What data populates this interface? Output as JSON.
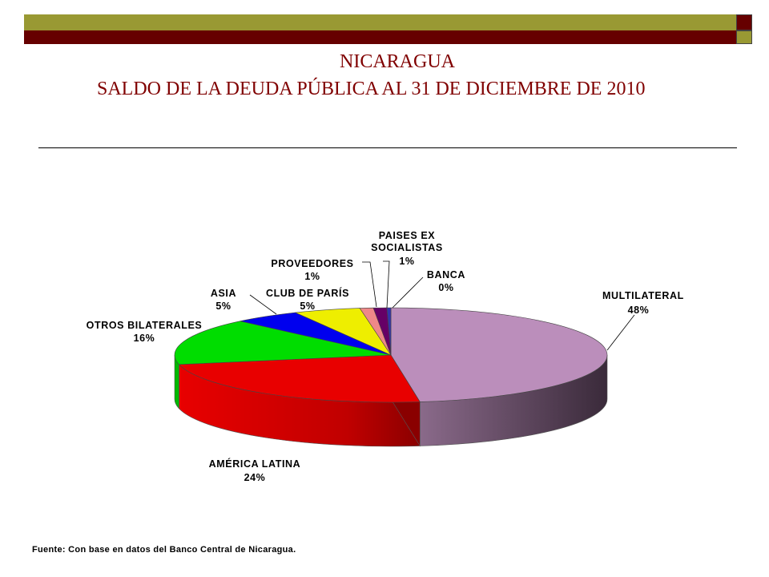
{
  "header": {
    "title_line1": "NICARAGUA",
    "title_line2": "SALDO DE LA DEUDA PÚBLICA AL 31 DE DICIEMBRE DE 2010"
  },
  "chart_data": {
    "type": "pie",
    "title": "SALDO DE LA DEUDA PÚBLICA AL 31 DE DICIEMBRE DE 2010",
    "slices": [
      {
        "label": "MULTILATERAL",
        "pct_label": "48%",
        "value": 48,
        "color": "#BB8EBB"
      },
      {
        "label": "AMÉRICA LATINA",
        "pct_label": "24%",
        "value": 24,
        "color": "#E80000"
      },
      {
        "label": "OTROS BILATERALES",
        "pct_label": "16%",
        "value": 16,
        "color": "#00DD00"
      },
      {
        "label": "ASIA",
        "pct_label": "5%",
        "value": 5,
        "color": "#0000EE"
      },
      {
        "label": "CLUB DE PARÍS",
        "pct_label": "5%",
        "value": 5,
        "color": "#EEEE00"
      },
      {
        "label": "PROVEEDORES",
        "pct_label": "1%",
        "value": 1,
        "color": "#EE8888"
      },
      {
        "label": "PAISES EX SOCIALISTAS",
        "pct_label": "1%",
        "value": 1,
        "color": "#660066"
      },
      {
        "label": "BANCA",
        "pct_label": "0%",
        "value": 0.3,
        "color": "#3333AA"
      }
    ]
  },
  "footer": {
    "source": "Fuente: Con base en datos del Banco Central de Nicaragua."
  },
  "colors": {
    "band_olive": "#999933",
    "band_maroon": "#660000",
    "title": "#800000"
  }
}
